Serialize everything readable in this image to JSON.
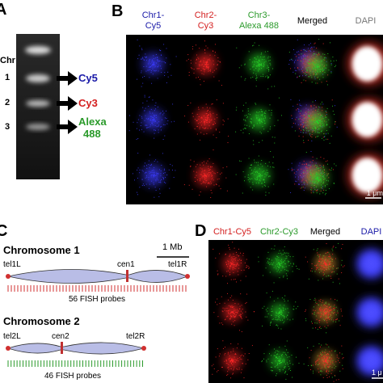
{
  "panel_a": {
    "letter": "A",
    "lane_label": "Chr",
    "bands": [
      "1",
      "2",
      "3"
    ],
    "labels": [
      [
        "Cy5"
      ],
      [
        "Cy3"
      ],
      [
        "Alexa",
        "488"
      ]
    ]
  },
  "panel_b": {
    "letter": "B",
    "headers": [
      [
        "Chr1-",
        "Cy5"
      ],
      [
        "Chr2-",
        "Cy3"
      ],
      [
        "Chr3-",
        "Alexa 488"
      ],
      [
        "Merged"
      ],
      [
        "DAPI"
      ]
    ],
    "scale_bar": "1 μm"
  },
  "panel_c": {
    "letter": "C",
    "scale_bar": "1 Mb",
    "chromosomes": [
      {
        "title": "Chromosome 1",
        "left": "tel1L",
        "centromere": "cen1",
        "right": "tel1R",
        "probes": "56 FISH probes"
      },
      {
        "title": "Chromosome 2",
        "left": "tel2L",
        "centromere": "cen2",
        "right": "tel2R",
        "probes": "46 FISH probes"
      }
    ]
  },
  "panel_d": {
    "letter": "D",
    "headers": [
      "Chr1-Cy5",
      "Chr2-Cy3",
      "Merged",
      "DAPI"
    ],
    "scale_bar": "1 μ"
  }
}
